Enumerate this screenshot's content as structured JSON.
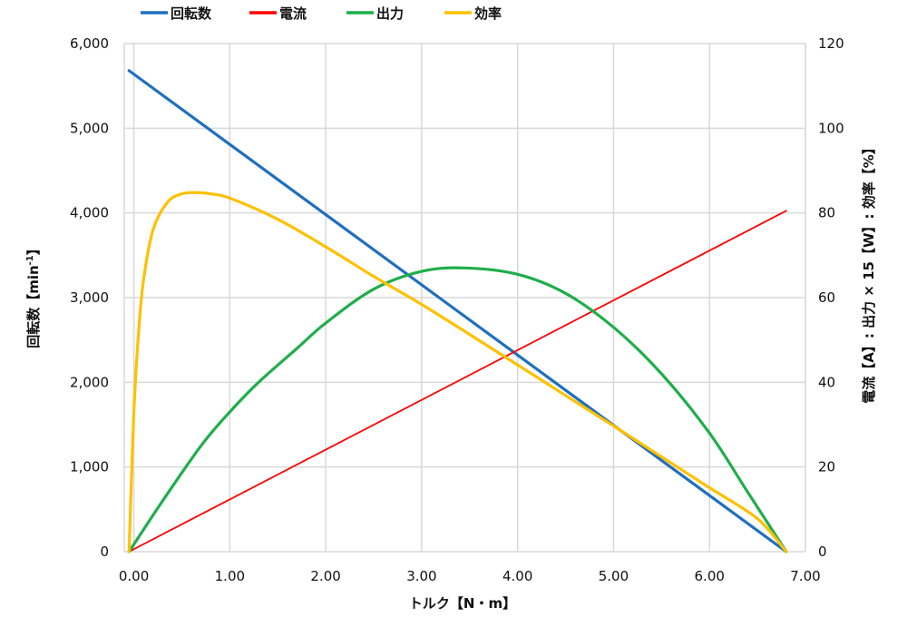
{
  "chart_data": {
    "type": "line",
    "xlabel": "トルク【N・m】",
    "ylabel_left": "回転数【min",
    "ylabel_left_sup": "-1",
    "ylabel_left_close": "】",
    "ylabel_right": "電流【A】: 出力 × 15【W】: 効率【%】",
    "xlim": [
      -0.1,
      7.0
    ],
    "ylim_left": [
      0,
      6000
    ],
    "ylim_right": [
      0,
      120
    ],
    "grid": true,
    "legend_position": "top",
    "x_ticks": [
      "0.00",
      "1.00",
      "2.00",
      "3.00",
      "4.00",
      "5.00",
      "6.00",
      "7.00"
    ],
    "x_tick_values": [
      0,
      1,
      2,
      3,
      4,
      5,
      6,
      7
    ],
    "y_left_ticks": [
      "0",
      "1,000",
      "2,000",
      "3,000",
      "4,000",
      "5,000",
      "6,000"
    ],
    "y_left_tick_values": [
      0,
      1000,
      2000,
      3000,
      4000,
      5000,
      6000
    ],
    "y_right_ticks": [
      "0",
      "20",
      "40",
      "60",
      "80",
      "100",
      "120"
    ],
    "y_right_tick_values": [
      0,
      20,
      40,
      60,
      80,
      100,
      120
    ],
    "series": [
      {
        "name": "回転数",
        "axis": "left",
        "color": "#1f6fc0",
        "x": [
          -0.05,
          6.8
        ],
        "y": [
          5680,
          0
        ]
      },
      {
        "name": "電流",
        "axis": "right",
        "color": "#ff0000",
        "x": [
          -0.05,
          6.8
        ],
        "y": [
          0,
          80.5
        ]
      },
      {
        "name": "出力",
        "axis": "right",
        "color": "#1fae4b",
        "x": [
          -0.05,
          0.3,
          0.7,
          1.0,
          1.3,
          1.7,
          2.0,
          2.5,
          3.0,
          3.45,
          4.0,
          4.5,
          5.0,
          5.5,
          6.0,
          6.4,
          6.8
        ],
        "y": [
          0,
          12,
          25,
          33,
          40,
          48,
          54,
          62,
          66.2,
          67,
          65.5,
          61,
          53,
          42,
          28,
          14,
          0
        ]
      },
      {
        "name": "効率",
        "axis": "right",
        "color": "#ffc000",
        "x": [
          -0.05,
          0.0,
          0.05,
          0.1,
          0.2,
          0.35,
          0.5,
          0.65,
          0.8,
          1.0,
          1.5,
          2.0,
          2.5,
          3.0,
          3.5,
          4.0,
          4.5,
          5.0,
          5.5,
          6.0,
          6.5,
          6.8
        ],
        "y": [
          0,
          33,
          52,
          64,
          76,
          82.5,
          84.5,
          84.8,
          84.5,
          83.5,
          78.5,
          72,
          65,
          58.4,
          51.3,
          44.1,
          36.9,
          29.7,
          22.4,
          15.1,
          7.8,
          0
        ]
      }
    ]
  }
}
